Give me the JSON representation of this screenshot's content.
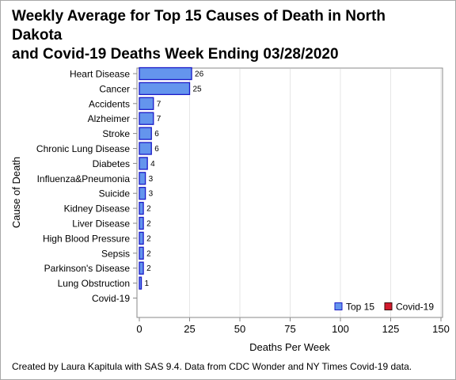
{
  "title_lines": [
    "Weekly Average for Top 15 Causes of Death in North",
    "Dakota",
    "and Covid-19 Deaths Week Ending 03/28/2020"
  ],
  "footnote": "Created by Laura Kapitula with SAS 9.4. Data from CDC Wonder and NY Times Covid-19 data.",
  "colors": {
    "top15_fill": "#6495ED",
    "top15_stroke": "#1A1AC8",
    "covid_fill": "#D21A2D",
    "covid_stroke": "#3A0A0A",
    "grid": "#E6E6E6",
    "axis": "#888888"
  },
  "chart_data": {
    "type": "bar",
    "orientation": "horizontal",
    "categories": [
      "Heart Disease",
      "Cancer",
      "Accidents",
      "Alzheimer",
      "Stroke",
      "Chronic Lung Disease",
      "Diabetes",
      "Influenza&Pneumonia",
      "Suicide",
      "Kidney Disease",
      "Liver Disease",
      "High Blood Pressure",
      "Sepsis",
      "Parkinson's Disease",
      "Lung Obstruction",
      "Covid-19"
    ],
    "series": [
      {
        "name": "Top 15",
        "values": [
          26,
          25,
          7,
          7,
          6,
          6,
          4,
          3,
          3,
          2,
          2,
          2,
          2,
          2,
          1,
          null
        ],
        "labels": [
          "26",
          "25",
          "7",
          "7",
          "6",
          "6",
          "4",
          "3",
          "3",
          "2",
          "2",
          "2",
          "2",
          "2",
          "1",
          ""
        ]
      },
      {
        "name": "Covid-19",
        "values": [
          null,
          null,
          null,
          null,
          null,
          null,
          null,
          null,
          null,
          null,
          null,
          null,
          null,
          null,
          null,
          0
        ],
        "labels": [
          "",
          "",
          "",
          "",
          "",
          "",
          "",
          "",
          "",
          "",
          "",
          "",
          "",
          "",
          "",
          ""
        ]
      }
    ],
    "xlabel": "Deaths Per Week",
    "ylabel": "Cause of Death",
    "xlim": [
      0,
      150
    ],
    "xticks": [
      0,
      25,
      50,
      75,
      100,
      125,
      150
    ],
    "grid": true,
    "legend": "bottom-right"
  }
}
